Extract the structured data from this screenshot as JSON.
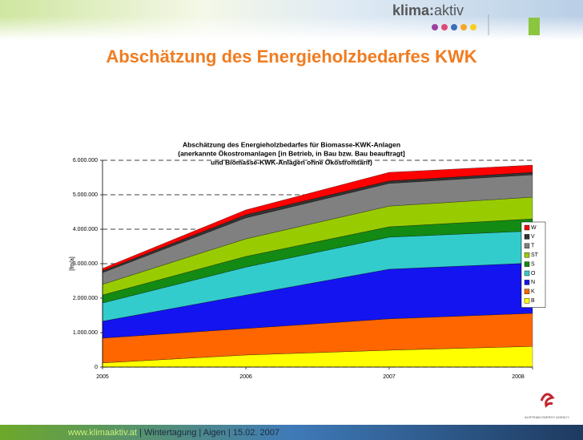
{
  "slide": {
    "logo_bold": "klima:",
    "logo_light": "aktiv",
    "heading": "Abschätzung des Energieholzbedarfes KWK",
    "footer_url": "www.klimaaktiv.at",
    "footer_rest": " | Wintertagung | Aigen | 15.02. 2007",
    "agency": "AUSTRIAN ENERGY AGENCY"
  },
  "chart_data": {
    "type": "stacked_area",
    "title": [
      "Abschätzung des Energieholzbedarfes für Biomasse-KWK-Anlagen",
      "(anerkannte Ökostromanlagen [in Betrieb, in Bau bzw. Bau beauftragt]",
      "und Biomasse-KWK-Anlagen ohne Ökostromtarif)"
    ],
    "y_label": "[fm/a]",
    "categories": [
      "2005",
      "2006",
      "2007",
      "2008"
    ],
    "series": [
      {
        "name": "B",
        "color": "#ffff00",
        "values": [
          120000,
          350000,
          490000,
          600000
        ]
      },
      {
        "name": "K",
        "color": "#ff6600",
        "values": [
          720000,
          770000,
          910000,
          960000
        ]
      },
      {
        "name": "N",
        "color": "#1414f0",
        "values": [
          490000,
          970000,
          1440000,
          1460000
        ]
      },
      {
        "name": "O",
        "color": "#33cccc",
        "values": [
          530000,
          810000,
          930000,
          930000
        ]
      },
      {
        "name": "S",
        "color": "#138a13",
        "values": [
          230000,
          310000,
          300000,
          350000
        ]
      },
      {
        "name": "ST",
        "color": "#99cc00",
        "values": [
          310000,
          510000,
          600000,
          630000
        ]
      },
      {
        "name": "T",
        "color": "#808080",
        "values": [
          340000,
          610000,
          660000,
          650000
        ]
      },
      {
        "name": "V",
        "color": "#333333",
        "values": [
          50000,
          90000,
          70000,
          70000
        ]
      },
      {
        "name": "W",
        "color": "#ff0000",
        "values": [
          70000,
          140000,
          250000,
          210000
        ]
      }
    ],
    "ylim": [
      0,
      6000000
    ],
    "yticks": [
      0,
      {
        "value": 1000000,
        "label": "1.000.000"
      },
      {
        "value": 2000000,
        "label": "2.000.000"
      },
      {
        "value": 3000000,
        "label": "3.000.000"
      },
      {
        "value": 4000000,
        "label": "4.000.000"
      },
      {
        "value": 5000000,
        "label": "5.000.000"
      },
      {
        "value": 6000000,
        "label": "6.000.000"
      }
    ],
    "grid": true,
    "grid_style": "dashed",
    "legend": "right"
  }
}
